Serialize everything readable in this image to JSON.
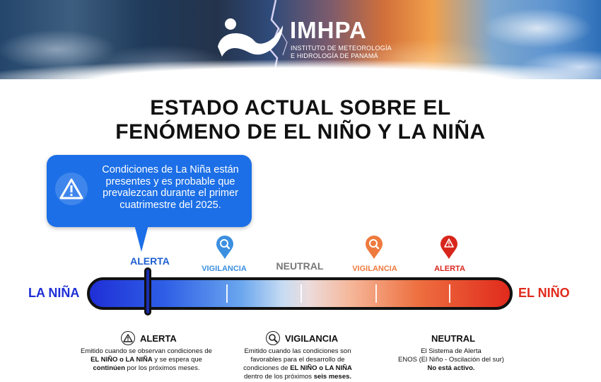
{
  "header": {
    "brand": "IMHPA",
    "subtitle_line1": "INSTITUTO DE METEOROLOGÍA",
    "subtitle_line2": "E HIDROLOGÍA DE PANAMÁ"
  },
  "title": {
    "line1": "ESTADO ACTUAL SOBRE EL",
    "line2": "FENÓMENO DE EL NIÑO Y LA NIÑA"
  },
  "callout": {
    "icon": "warning-icon",
    "text": "Condiciones de La Niña están presentes y es probable que prevalezcan durante el primer cuatrimestre del 2025."
  },
  "stages": {
    "alerta_left": "ALERTA",
    "vigilancia_left": "VIGILANCIA",
    "neutral": "NEUTRAL",
    "vigilancia_right": "VIGILANCIA",
    "alerta_right": "ALERTA"
  },
  "gauge": {
    "left_label": "LA NIÑA",
    "right_label": "EL NIÑO",
    "colors": {
      "la_nina": "#1f2fd6",
      "el_nino": "#e02a1c",
      "vigilancia_left": "#3b8fe0",
      "vigilancia_right": "#ee7a3e",
      "neutral": "#777777"
    }
  },
  "legend": {
    "alerta": {
      "icon": "warning-icon",
      "title": "ALERTA",
      "text_pre": "Emitido cuando se observan condiciones de ",
      "text_bold1": "EL NIÑO o LA NIÑA",
      "text_mid": " y se espera que ",
      "text_bold2": "continúen",
      "text_post": " por los próximos meses."
    },
    "vigilancia": {
      "icon": "magnifier-icon",
      "title": "VIGILANCIA",
      "text_pre": "Emitido cuando las condiciones son favorables para el desarrollo de condiciones de ",
      "text_bold1": "EL NIÑO o LA NIÑA",
      "text_mid": " dentro de los próximos ",
      "text_bold2": "seis meses."
    },
    "neutral": {
      "title": "NEUTRAL",
      "text_line1": "El Sistema de Alerta",
      "text_line2": "ENOS (El Niño - Oscilación del sur)",
      "text_bold": "No está activo."
    }
  }
}
